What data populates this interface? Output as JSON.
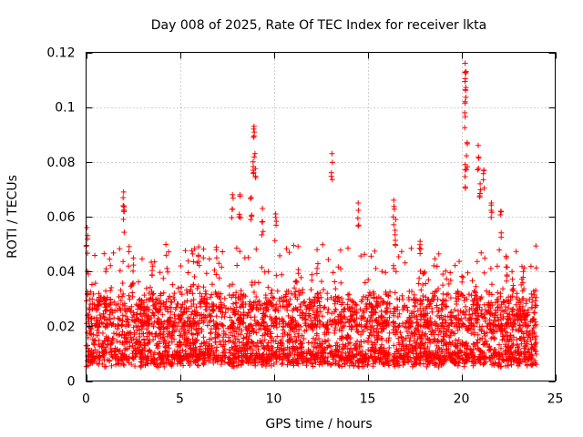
{
  "chart_data": {
    "type": "scatter",
    "title": "Day 008 of 2025, Rate Of TEC Index for receiver lkta",
    "xlabel": "GPS time / hours",
    "ylabel": "ROTI / TECUs",
    "xlim": [
      0,
      25
    ],
    "ylim": [
      0,
      0.12
    ],
    "xticks": [
      0,
      5,
      10,
      15,
      20,
      25
    ],
    "yticks": [
      0,
      0.02,
      0.04,
      0.06,
      0.08,
      0.1,
      0.12
    ],
    "xtick_labels": [
      "0",
      "5",
      "10",
      "15",
      "20",
      "25"
    ],
    "ytick_labels": [
      "0",
      "0.02",
      "0.04",
      "0.06",
      "0.08",
      "0.1",
      "0.12"
    ],
    "grid": true,
    "marker": "+",
    "color": "#ff0000",
    "series": [
      {
        "name": "ROTI",
        "baseline_band": [
          0.005,
          0.03
        ],
        "gaps_hours": [
          [
            7.45,
            7.55
          ],
          [
            16.2,
            16.35
          ]
        ],
        "notable_points": [
          {
            "x": 0.05,
            "y": 0.056
          },
          {
            "x": 2.0,
            "y": 0.069
          },
          {
            "x": 2.0,
            "y": 0.064
          },
          {
            "x": 6.0,
            "y": 0.049
          },
          {
            "x": 7.8,
            "y": 0.068
          },
          {
            "x": 8.2,
            "y": 0.068
          },
          {
            "x": 8.8,
            "y": 0.067
          },
          {
            "x": 8.9,
            "y": 0.08
          },
          {
            "x": 8.95,
            "y": 0.093
          },
          {
            "x": 9.0,
            "y": 0.083
          },
          {
            "x": 9.4,
            "y": 0.063
          },
          {
            "x": 10.1,
            "y": 0.061
          },
          {
            "x": 13.1,
            "y": 0.083
          },
          {
            "x": 14.5,
            "y": 0.065
          },
          {
            "x": 16.4,
            "y": 0.066
          },
          {
            "x": 16.5,
            "y": 0.059
          },
          {
            "x": 17.8,
            "y": 0.051
          },
          {
            "x": 20.2,
            "y": 0.116
          },
          {
            "x": 20.25,
            "y": 0.113
          },
          {
            "x": 20.2,
            "y": 0.102
          },
          {
            "x": 20.3,
            "y": 0.087
          },
          {
            "x": 20.2,
            "y": 0.079
          },
          {
            "x": 20.9,
            "y": 0.086
          },
          {
            "x": 21.0,
            "y": 0.072
          },
          {
            "x": 21.2,
            "y": 0.077
          },
          {
            "x": 21.6,
            "y": 0.065
          },
          {
            "x": 22.1,
            "y": 0.062
          },
          {
            "x": 22.4,
            "y": 0.045
          },
          {
            "x": 23.3,
            "y": 0.04
          }
        ]
      }
    ]
  }
}
